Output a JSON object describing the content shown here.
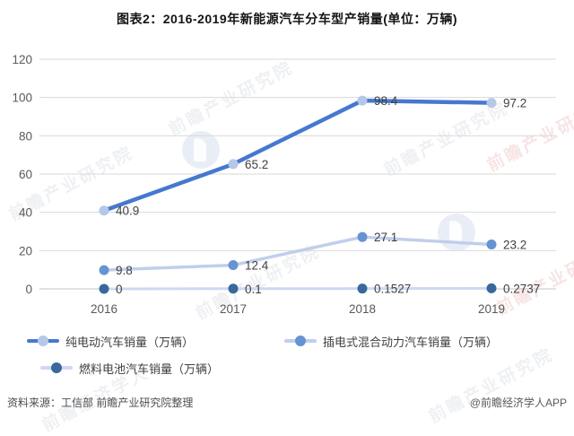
{
  "title": "图表2：2016-2019年新能源汽车分车型产销量(单位：万辆)",
  "footer": {
    "source": "资料来源：工信部 前瞻产业研究院整理",
    "credit": "@前瞻经济学人APP"
  },
  "watermark": {
    "text": "前瞻产业研究院",
    "text2": "前瞻经济学人"
  },
  "chart_data": {
    "type": "line",
    "title": "图表2：2016-2019年新能源汽车分车型产销量(单位：万辆)",
    "categories": [
      "2016",
      "2017",
      "2018",
      "2019"
    ],
    "series": [
      {
        "name": "纯电动汽车销量（万辆）",
        "values": [
          40.9,
          65.2,
          98.4,
          97.2
        ],
        "labels": [
          "40.9",
          "65.2",
          "98.4",
          "97.2"
        ],
        "line_color": "#4678cf",
        "marker_color": "#b5c8e8",
        "line_width": 4.5
      },
      {
        "name": "插电式混合动力汽车销量（万辆）",
        "values": [
          9.8,
          12.4,
          27.1,
          23.2
        ],
        "labels": [
          "9.8",
          "12.4",
          "27.1",
          "23.2"
        ],
        "line_color": "#c0cfeb",
        "marker_color": "#6593d3",
        "line_width": 3.5
      },
      {
        "name": "燃料电池汽车销量（万辆）",
        "values": [
          0,
          0.1,
          0.1527,
          0.2737
        ],
        "labels": [
          "0",
          "0.1",
          "0.1527",
          "0.2737"
        ],
        "line_color": "#cdd9f0",
        "marker_color": "#38689c",
        "line_width": 3
      }
    ],
    "xlabel": "",
    "ylabel": "",
    "ylim": [
      0,
      120
    ],
    "yticks": [
      0,
      20,
      40,
      60,
      80,
      100,
      120
    ],
    "grid": true,
    "legend_position": "bottom",
    "axis_text_color": "#595959",
    "label_text_color": "#3f3f3f",
    "grid_color": "#d9d9d9"
  }
}
